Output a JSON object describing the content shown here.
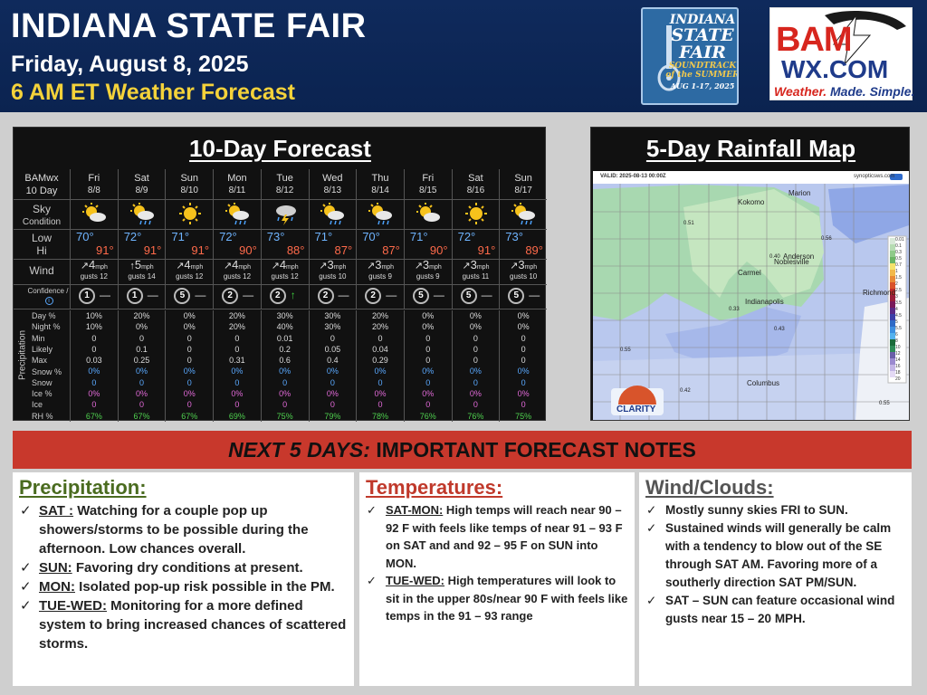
{
  "header": {
    "title": "INDIANA STATE FAIR",
    "date": "Friday, August 8, 2025",
    "forecast_time": "6 AM ET Weather Forecast"
  },
  "fair_logo": {
    "line1": "INDIANA",
    "line2": "STATE",
    "line3": "FAIR",
    "line4": "SOUNDTRACK",
    "line5": "of the SUMMER",
    "line6": "AUG 1-17, 2025"
  },
  "bamwx_logo": {
    "top": "BAM",
    "mid": "WX.COM",
    "tag1": "Weather.",
    "tag2": "Made.",
    "tag3": "Simple."
  },
  "forecast": {
    "title": "10-Day Forecast",
    "corner_label_1": "BAMwx",
    "corner_label_2": "10 Day",
    "row_labels": {
      "sky_1": "Sky",
      "sky_2": "Condition",
      "low": "Low",
      "hi": "Hi",
      "wind": "Wind",
      "confidence_1": "Confidence /",
      "confidence_2": "Trend",
      "precipitation": "Precipitation",
      "day_pct": "Day %",
      "night_pct": "Night %",
      "min": "Min",
      "likely": "Likely",
      "max": "Max",
      "snow_pct": "Snow %",
      "snow": "Snow",
      "ice_pct": "Ice %",
      "ice": "Ice",
      "rh_pct": "RH %"
    },
    "days": [
      {
        "day": "Fri",
        "date": "8/8",
        "icon": "sun-cloud-icon",
        "low": "70°",
        "hi": "91°",
        "wind_dir": "↗",
        "wind": "4",
        "gusts": "gusts 12",
        "conf": "1",
        "trend": "—",
        "day_pct": "10%",
        "night_pct": "10%",
        "min": "0",
        "likely": "0",
        "max": "0.03",
        "snow_pct": "0%",
        "snow": "0",
        "ice_pct": "0%",
        "ice": "0",
        "rh": "67%"
      },
      {
        "day": "Sat",
        "date": "8/9",
        "icon": "sun-cloud-rain-icon",
        "low": "72°",
        "hi": "91°",
        "wind_dir": "↑",
        "wind": "5",
        "gusts": "gusts 14",
        "conf": "1",
        "trend": "—",
        "day_pct": "20%",
        "night_pct": "0%",
        "min": "0",
        "likely": "0.1",
        "max": "0.25",
        "snow_pct": "0%",
        "snow": "0",
        "ice_pct": "0%",
        "ice": "0",
        "rh": "67%"
      },
      {
        "day": "Sun",
        "date": "8/10",
        "icon": "sun-icon",
        "low": "71°",
        "hi": "91°",
        "wind_dir": "↗",
        "wind": "4",
        "gusts": "gusts 12",
        "conf": "5",
        "trend": "—",
        "day_pct": "0%",
        "night_pct": "0%",
        "min": "0",
        "likely": "0",
        "max": "0",
        "snow_pct": "0%",
        "snow": "0",
        "ice_pct": "0%",
        "ice": "0",
        "rh": "67%"
      },
      {
        "day": "Mon",
        "date": "8/11",
        "icon": "sun-cloud-rain-icon",
        "low": "72°",
        "hi": "90°",
        "wind_dir": "↗",
        "wind": "4",
        "gusts": "gusts 12",
        "conf": "2",
        "trend": "—",
        "day_pct": "20%",
        "night_pct": "20%",
        "min": "0",
        "likely": "0",
        "max": "0.31",
        "snow_pct": "0%",
        "snow": "0",
        "ice_pct": "0%",
        "ice": "0",
        "rh": "69%"
      },
      {
        "day": "Tue",
        "date": "8/12",
        "icon": "storm-icon",
        "low": "73°",
        "hi": "88°",
        "wind_dir": "↗",
        "wind": "4",
        "gusts": "gusts 12",
        "conf": "2",
        "trend": "↑",
        "day_pct": "30%",
        "night_pct": "40%",
        "min": "0.01",
        "likely": "0.2",
        "max": "0.6",
        "snow_pct": "0%",
        "snow": "0",
        "ice_pct": "0%",
        "ice": "0",
        "rh": "75%"
      },
      {
        "day": "Wed",
        "date": "8/13",
        "icon": "sun-cloud-rain-icon",
        "low": "71°",
        "hi": "87°",
        "wind_dir": "↗",
        "wind": "3",
        "gusts": "gusts 10",
        "conf": "2",
        "trend": "—",
        "day_pct": "30%",
        "night_pct": "30%",
        "min": "0",
        "likely": "0.05",
        "max": "0.4",
        "snow_pct": "0%",
        "snow": "0",
        "ice_pct": "0%",
        "ice": "0",
        "rh": "79%"
      },
      {
        "day": "Thu",
        "date": "8/14",
        "icon": "sun-cloud-rain-icon",
        "low": "70°",
        "hi": "87°",
        "wind_dir": "↗",
        "wind": "3",
        "gusts": "gusts 9",
        "conf": "2",
        "trend": "—",
        "day_pct": "20%",
        "night_pct": "20%",
        "min": "0",
        "likely": "0.04",
        "max": "0.29",
        "snow_pct": "0%",
        "snow": "0",
        "ice_pct": "0%",
        "ice": "0",
        "rh": "78%"
      },
      {
        "day": "Fri",
        "date": "8/15",
        "icon": "sun-cloud-icon",
        "low": "71°",
        "hi": "90°",
        "wind_dir": "↗",
        "wind": "3",
        "gusts": "gusts 9",
        "conf": "5",
        "trend": "—",
        "day_pct": "0%",
        "night_pct": "0%",
        "min": "0",
        "likely": "0",
        "max": "0",
        "snow_pct": "0%",
        "snow": "0",
        "ice_pct": "0%",
        "ice": "0",
        "rh": "76%"
      },
      {
        "day": "Sat",
        "date": "8/16",
        "icon": "sun-icon",
        "low": "72°",
        "hi": "91°",
        "wind_dir": "↗",
        "wind": "3",
        "gusts": "gusts 11",
        "conf": "5",
        "trend": "—",
        "day_pct": "0%",
        "night_pct": "0%",
        "min": "0",
        "likely": "0",
        "max": "0",
        "snow_pct": "0%",
        "snow": "0",
        "ice_pct": "0%",
        "ice": "0",
        "rh": "76%"
      },
      {
        "day": "Sun",
        "date": "8/17",
        "icon": "sun-cloud-rain-icon",
        "low": "73°",
        "hi": "89°",
        "wind_dir": "↗",
        "wind": "3",
        "gusts": "gusts 10",
        "conf": "5",
        "trend": "—",
        "day_pct": "0%",
        "night_pct": "0%",
        "min": "0",
        "likely": "0",
        "max": "0",
        "snow_pct": "0%",
        "snow": "0",
        "ice_pct": "0%",
        "ice": "0",
        "rh": "75%"
      }
    ],
    "mph": "mph"
  },
  "map": {
    "title": "5-Day Rainfall Map",
    "valid": "VALID: 2025-08-13 00:00Z",
    "source": "synopticsws.com",
    "cities": [
      "Kokomo",
      "Marion",
      "Noblesville",
      "Anderson",
      "Carmel",
      "Indianapolis",
      "Richmond",
      "Columbus"
    ],
    "values": [
      "0.51",
      "0.56",
      "0.40",
      "0.33",
      "0.43",
      "0.55",
      "0.42",
      "0.55"
    ],
    "legend": [
      "0.01",
      "0.1",
      "0.3",
      "0.5",
      "0.7",
      "1",
      "1.5",
      "2",
      "2.5",
      "3",
      "3.5",
      "4",
      "4.5",
      "5",
      "5.5",
      "6",
      "8",
      "10",
      "12",
      "14",
      "16",
      "18",
      "20"
    ],
    "clarity_label": "CLARITY"
  },
  "notes": {
    "band_italic": "NEXT 5 DAYS:",
    "band_rest": " IMPORTANT FORECAST NOTES",
    "precip": {
      "title": "Precipitation:",
      "items": [
        {
          "lead": "SAT :",
          "text": " Watching for a couple pop up showers/storms to be possible during the afternoon. Low chances overall."
        },
        {
          "lead": "SUN:",
          "text": " Favoring dry conditions at present."
        },
        {
          "lead": "MON:",
          "text": " Isolated pop-up risk possible in the PM."
        },
        {
          "lead": "TUE-WED:",
          "text": " Monitoring for a more defined system to bring increased chances of scattered storms."
        }
      ]
    },
    "temps": {
      "title": "Temperatures:",
      "items": [
        {
          "lead": "SAT-MON:",
          "text": " High temps will reach near 90 – 92 F with feels like temps of near 91 – 93 F on SAT and and 92 – 95 F on SUN into MON."
        },
        {
          "lead": "TUE-WED:",
          "text": " High temperatures will look to sit in the upper 80s/near 90 F with feels like temps in the 91 – 93 range"
        }
      ]
    },
    "wind": {
      "title": "Wind/Clouds:",
      "items": [
        {
          "lead": "",
          "text": "Mostly sunny skies FRI to SUN."
        },
        {
          "lead": "",
          "text": "Sustained winds will generally be calm with a tendency to blow out of the SE through SAT AM. Favoring more of a southerly direction SAT PM/SUN."
        },
        {
          "lead": "",
          "text": "SAT – SUN can feature occasional wind gusts near 15 – 20 MPH."
        }
      ]
    },
    "check": "✓"
  },
  "colors": {
    "header_bg": "#0f2a5c",
    "accent_yellow": "#f4d23a",
    "band_red": "#c8382c",
    "precip_green": "#4a6b1f",
    "temps_red": "#c0392b",
    "wind_gray": "#555555"
  }
}
